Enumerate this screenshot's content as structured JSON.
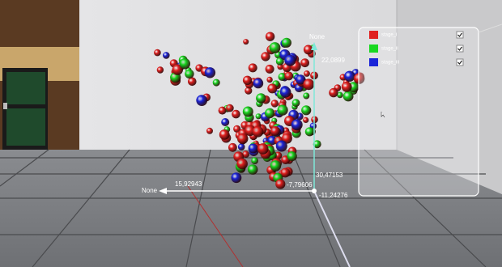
{
  "scene": {
    "axes": {
      "vertical_name": "None",
      "vertical_top": "22,0899",
      "horizontal_name": "None",
      "horizontal_left": "15,92943",
      "horizontal_right": "-7,79606",
      "depth_value": "30,47153",
      "vertical_bottom": "-11,24276"
    },
    "legend": [
      {
        "label": "stage_i",
        "color": "#e0201f"
      },
      {
        "label": "stage_ii",
        "color": "#18d820"
      },
      {
        "label": "stage_iii",
        "color": "#1a24d8"
      }
    ]
  }
}
